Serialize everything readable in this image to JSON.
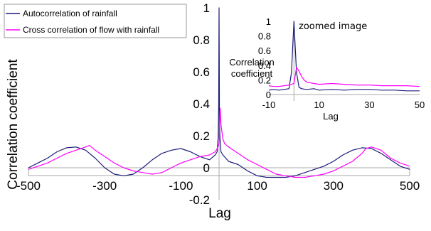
{
  "chart_data": [
    {
      "type": "line",
      "xlabel": "Lag",
      "ylabel": "Correlation coefficient",
      "xlim": [
        -500,
        500
      ],
      "ylim": [
        -0.2,
        1
      ],
      "x_ticks": [
        "-500",
        "-300",
        "-100",
        "100",
        "300",
        "500"
      ],
      "y_ticks": [
        "1",
        "0.8",
        "0.6",
        "0.4",
        "0.2",
        "0",
        "-0.2"
      ],
      "legend_position": "top-left",
      "series": [
        {
          "name": "Autocorrelation of rainfall",
          "color": "#1c1c78",
          "x": [
            -500,
            -475,
            -450,
            -425,
            -400,
            -375,
            -350,
            -325,
            -300,
            -275,
            -250,
            -225,
            -200,
            -175,
            -150,
            -125,
            -100,
            -75,
            -50,
            -25,
            -10,
            -5,
            -2,
            -1,
            0,
            1,
            2,
            5,
            10,
            25,
            50,
            75,
            100,
            125,
            150,
            175,
            200,
            225,
            250,
            275,
            300,
            325,
            350,
            375,
            400,
            425,
            450,
            475,
            500
          ],
          "y": [
            0.0,
            0.03,
            0.06,
            0.1,
            0.125,
            0.13,
            0.11,
            0.06,
            0.0,
            -0.04,
            -0.05,
            -0.04,
            0.0,
            0.05,
            0.09,
            0.11,
            0.12,
            0.1,
            0.07,
            0.05,
            0.08,
            0.1,
            0.2,
            0.4,
            1.0,
            0.4,
            0.2,
            0.1,
            0.08,
            0.04,
            0.02,
            -0.02,
            -0.05,
            -0.06,
            -0.06,
            -0.06,
            -0.05,
            -0.03,
            -0.01,
            0.01,
            0.04,
            0.08,
            0.11,
            0.125,
            0.12,
            0.09,
            0.05,
            0.01,
            -0.01
          ]
        },
        {
          "name": "Cross correlation of flow with rainfall",
          "color": "#ff00ff",
          "x": [
            -500,
            -475,
            -450,
            -425,
            -400,
            -375,
            -350,
            -340,
            -325,
            -300,
            -275,
            -250,
            -225,
            -200,
            -175,
            -150,
            -125,
            -100,
            -75,
            -50,
            -25,
            -10,
            -5,
            0,
            3,
            5,
            10,
            15,
            25,
            50,
            75,
            100,
            125,
            150,
            175,
            200,
            225,
            250,
            275,
            300,
            325,
            350,
            375,
            385,
            400,
            425,
            450,
            475,
            500
          ],
          "y": [
            -0.01,
            0.01,
            0.03,
            0.06,
            0.09,
            0.11,
            0.13,
            0.14,
            0.11,
            0.07,
            0.03,
            0.0,
            -0.02,
            -0.03,
            -0.04,
            -0.03,
            0.0,
            0.03,
            0.05,
            0.07,
            0.08,
            0.1,
            0.12,
            0.15,
            0.37,
            0.27,
            0.18,
            0.15,
            0.13,
            0.09,
            0.05,
            0.02,
            -0.01,
            -0.04,
            -0.05,
            -0.06,
            -0.06,
            -0.05,
            -0.04,
            -0.02,
            0.01,
            0.04,
            0.09,
            0.12,
            0.13,
            0.11,
            0.06,
            0.03,
            0.01
          ]
        }
      ]
    },
    {
      "type": "line",
      "title": "zoomed image",
      "xlabel": "Lag",
      "ylabel": "Correlation coefficient",
      "ylabel_lines": [
        "Correlation",
        "coefficient"
      ],
      "xlim": [
        -10,
        50
      ],
      "ylim": [
        0,
        1
      ],
      "x_ticks": [
        "-10",
        "10",
        "30",
        "50"
      ],
      "y_ticks": [
        "1",
        "0.8",
        "0.6",
        "0.4",
        "0.2",
        "0"
      ],
      "series": [
        {
          "name": "Autocorrelation of rainfall",
          "color": "#1c1c78",
          "x": [
            -10,
            -8,
            -6,
            -4,
            -2,
            -1,
            0,
            1,
            2,
            3,
            5,
            8,
            10,
            15,
            20,
            25,
            30,
            35,
            40,
            45,
            50
          ],
          "y": [
            0.06,
            0.07,
            0.06,
            0.07,
            0.08,
            0.3,
            1.0,
            0.3,
            0.1,
            0.08,
            0.07,
            0.08,
            0.06,
            0.07,
            0.06,
            0.07,
            0.07,
            0.06,
            0.06,
            0.05,
            0.05
          ]
        },
        {
          "name": "Cross correlation of flow with rainfall",
          "color": "#ff00ff",
          "x": [
            -10,
            -8,
            -6,
            -4,
            -2,
            -1,
            0,
            1,
            2,
            3,
            4,
            5,
            8,
            10,
            15,
            20,
            25,
            30,
            35,
            40,
            45,
            50
          ],
          "y": [
            0.12,
            0.11,
            0.11,
            0.12,
            0.13,
            0.14,
            0.15,
            0.37,
            0.32,
            0.25,
            0.2,
            0.17,
            0.15,
            0.14,
            0.15,
            0.14,
            0.13,
            0.13,
            0.12,
            0.12,
            0.12,
            0.11
          ]
        }
      ]
    }
  ]
}
